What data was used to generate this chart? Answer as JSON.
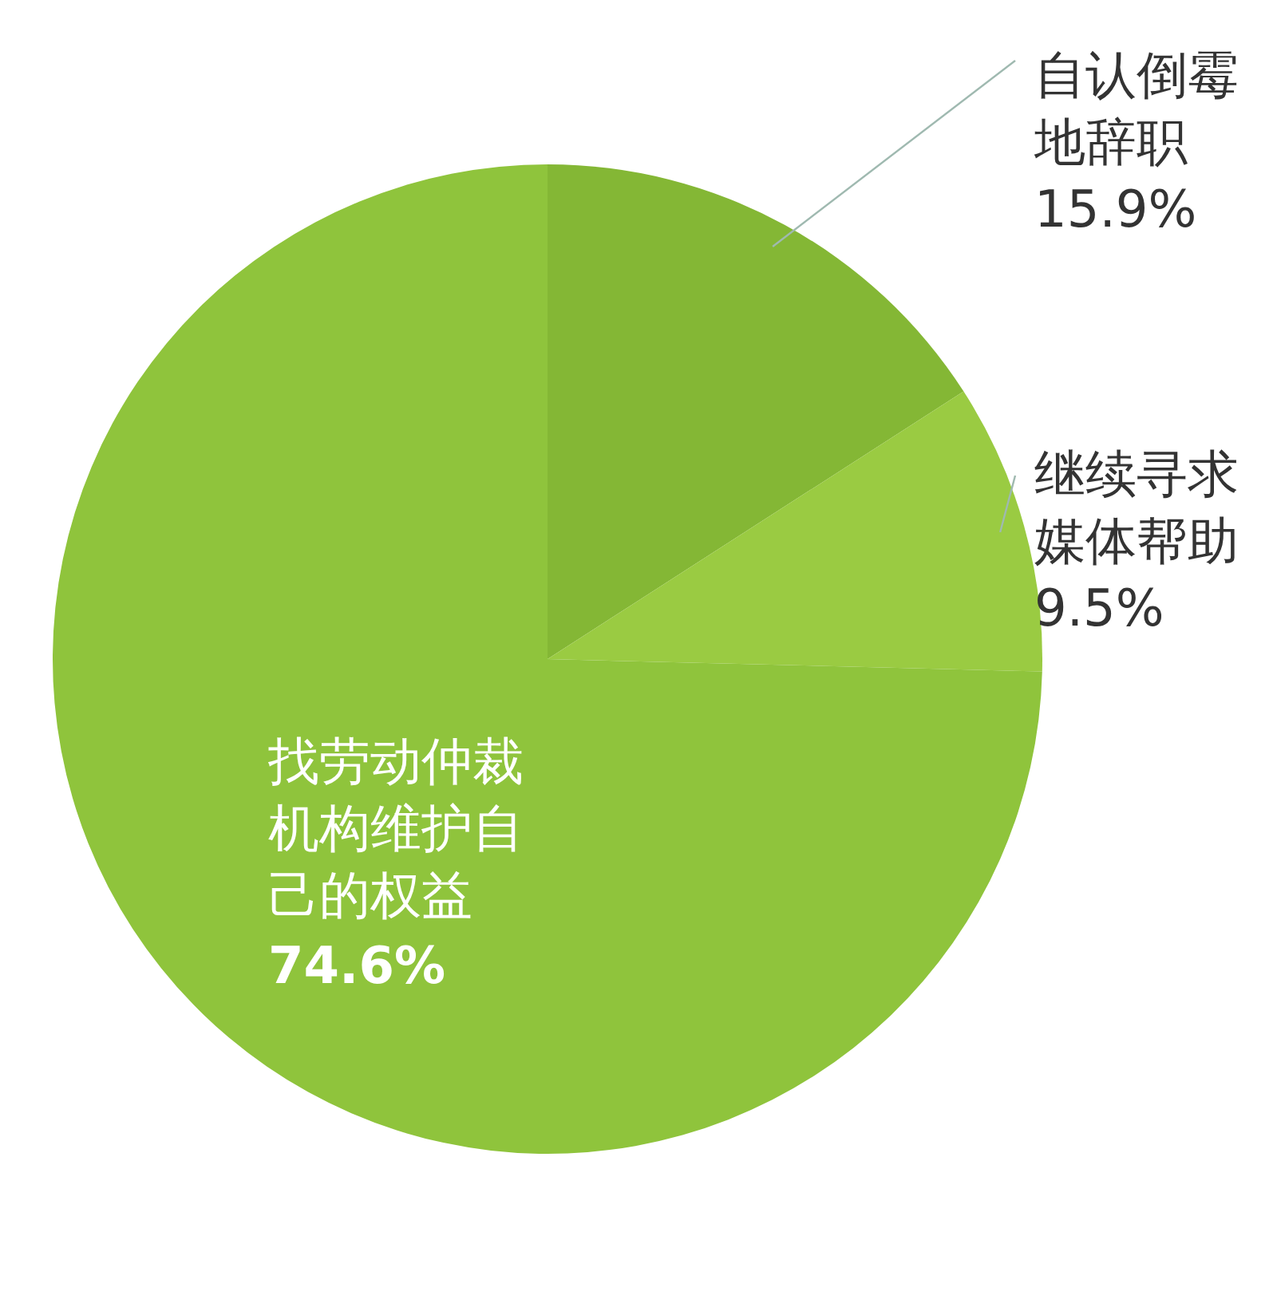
{
  "chart_data": {
    "type": "pie",
    "categories": [
      "自认倒霉地辞职",
      "继续寻求媒体帮助",
      "找劳动仲裁机构维护自己的权益"
    ],
    "values": [
      15.9,
      9.5,
      74.6
    ],
    "colors": [
      "#84b735",
      "#9acb42",
      "#8fc43c"
    ],
    "value_labels": [
      "15.9%",
      "9.5%",
      "74.6%"
    ]
  }
}
